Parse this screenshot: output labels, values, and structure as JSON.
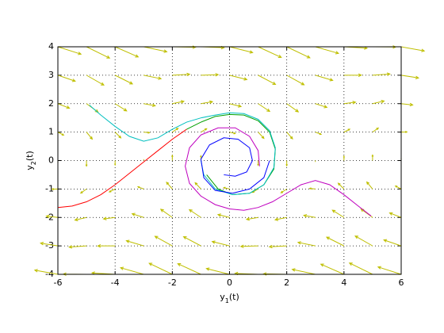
{
  "chart_data": {
    "type": "quiver",
    "xlabel": "y1(t)",
    "ylabel": "y2(t)",
    "xlim": [
      -6,
      6
    ],
    "ylim": [
      -4,
      4
    ],
    "xticks": [
      -6,
      -4,
      -2,
      0,
      2,
      4,
      6
    ],
    "yticks": [
      -4,
      -3,
      -2,
      -1,
      0,
      1,
      2,
      3,
      4
    ],
    "grid": true,
    "quiver": {
      "color": "#bfbf00",
      "x": [
        -6,
        -5,
        -4,
        -3,
        -2,
        -1,
        0,
        1,
        2,
        3,
        4,
        5,
        6
      ],
      "rows": [
        {
          "y": 4,
          "u": [
            4,
            4,
            4,
            4,
            4,
            4,
            4,
            4,
            4,
            4,
            4,
            4,
            4
          ],
          "v": [
            -1.28,
            -1.96,
            -1.76,
            -0.86,
            -0.09,
            -0.16,
            -1,
            -1.84,
            -1.91,
            -1.14,
            -0.24,
            -0.04,
            -0.72
          ]
        },
        {
          "y": 3,
          "u": [
            3,
            3,
            3,
            3,
            3,
            3,
            3,
            3,
            3,
            3,
            3,
            3,
            3
          ],
          "v": [
            -1.03,
            -1.71,
            -1.51,
            -0.61,
            0.16,
            0.09,
            -0.75,
            -1.59,
            -1.66,
            -0.89,
            0.01,
            0.21,
            -0.47
          ]
        },
        {
          "y": 2,
          "u": [
            2,
            2,
            2,
            2,
            2,
            2,
            2,
            2,
            2,
            2,
            2,
            2,
            2
          ],
          "v": [
            -0.78,
            -1.46,
            -1.26,
            -0.36,
            0.41,
            0.34,
            -0.5,
            -1.34,
            -1.41,
            -0.64,
            0.26,
            0.46,
            -0.22
          ]
        },
        {
          "y": 1,
          "u": [
            1,
            1,
            1,
            1,
            1,
            1,
            1,
            1,
            1,
            1,
            1,
            1,
            1
          ],
          "v": [
            -0.53,
            -1.21,
            -1.01,
            -0.11,
            0.66,
            0.59,
            -0.25,
            -1.09,
            -1.16,
            -0.39,
            0.51,
            0.71,
            0.03
          ]
        },
        {
          "y": 0,
          "u": [
            0,
            0,
            0,
            0,
            0,
            0,
            0,
            0,
            0,
            0,
            0,
            0,
            0
          ],
          "v": [
            -0.28,
            -0.96,
            -0.76,
            0.14,
            0.91,
            0.84,
            0,
            -0.84,
            -0.91,
            -0.14,
            0.76,
            0.96,
            0.28
          ]
        },
        {
          "y": -1,
          "u": [
            -1,
            -1,
            -1,
            -1,
            -1,
            -1,
            -1,
            -1,
            -1,
            -1,
            -1,
            -1,
            -1
          ],
          "v": [
            -0.03,
            -0.71,
            -0.51,
            0.39,
            1.16,
            1.09,
            0.25,
            -0.59,
            -0.66,
            0.11,
            1.01,
            1.21,
            0.53
          ]
        },
        {
          "y": -2,
          "u": [
            -2,
            -2,
            -2,
            -2,
            -2,
            -2,
            -2,
            -2,
            -2,
            -2,
            -2,
            -2,
            -2
          ],
          "v": [
            0.22,
            -0.46,
            -0.26,
            0.64,
            1.41,
            1.34,
            0.5,
            -0.34,
            -0.41,
            0.36,
            1.26,
            1.46,
            0.78
          ]
        },
        {
          "y": -3,
          "u": [
            -3,
            -3,
            -3,
            -3,
            -3,
            -3,
            -3,
            -3,
            -3,
            -3,
            -3,
            -3,
            -3
          ],
          "v": [
            0.47,
            -0.21,
            -0.01,
            0.89,
            1.66,
            1.59,
            0.75,
            -0.09,
            -0.16,
            0.61,
            1.51,
            1.71,
            1.03
          ]
        },
        {
          "y": -4,
          "u": [
            -4,
            -4,
            -4,
            -4,
            -4,
            -4,
            -4,
            -4,
            -4,
            -4,
            -4,
            -4,
            -4
          ],
          "v": [
            0.72,
            0.04,
            0.24,
            1.14,
            1.91,
            1.84,
            1,
            0.16,
            0.09,
            0.86,
            1.76,
            1.96,
            1.28
          ]
        }
      ]
    },
    "series": [
      {
        "color": "#ff0000",
        "x": [
          -6,
          -5.5,
          -5,
          -4.5,
          -4,
          -3.5,
          -3,
          -2.5,
          -2,
          -1.5
        ],
        "values": [
          -1.65,
          -1.6,
          -1.45,
          -1.2,
          -0.85,
          -0.45,
          -0.05,
          0.35,
          0.75,
          1.1
        ]
      },
      {
        "color": "#00a000",
        "x": [
          -1.5,
          -1,
          -0.5,
          0,
          0.5,
          1,
          1.4,
          1.6,
          1.55,
          1.2,
          0.7,
          0.1,
          -0.4,
          -0.8
        ],
        "values": [
          1.1,
          1.35,
          1.55,
          1.62,
          1.6,
          1.4,
          1.0,
          0.4,
          -0.3,
          -0.85,
          -1.15,
          -1.2,
          -1.0,
          -0.5
        ]
      },
      {
        "color": "#00bfbf",
        "x": [
          -4.9,
          -4.5,
          -4,
          -3.5,
          -3,
          -2.5,
          -2,
          -1.5,
          -1,
          -0.5,
          0,
          0.5,
          1,
          1.4,
          1.6,
          1.55,
          1.2,
          0.7,
          0.1,
          -0.5,
          -0.9,
          -1
        ],
        "values": [
          1.95,
          1.6,
          1.2,
          0.85,
          0.68,
          0.8,
          1.1,
          1.35,
          1.5,
          1.6,
          1.68,
          1.65,
          1.45,
          1.05,
          0.45,
          -0.25,
          -0.85,
          -1.15,
          -1.2,
          -1.0,
          -0.5,
          0
        ]
      },
      {
        "color": "#bf00bf",
        "x": [
          4.95,
          4.5,
          4,
          3.5,
          3,
          2.5,
          2,
          1.5,
          1,
          0.5,
          0,
          -0.5,
          -1,
          -1.4,
          -1.55,
          -1.4,
          -1,
          -0.4,
          0.2,
          0.7,
          1,
          1.05
        ],
        "values": [
          -1.95,
          -1.6,
          -1.2,
          -0.85,
          -0.7,
          -0.85,
          -1.15,
          -1.45,
          -1.65,
          -1.75,
          -1.7,
          -1.55,
          -1.25,
          -0.8,
          -0.2,
          0.45,
          0.9,
          1.15,
          1.15,
          0.85,
          0.35,
          -0.2
        ]
      },
      {
        "color": "#0000ff",
        "x": [
          -0.2,
          0.2,
          0.6,
          0.8,
          0.7,
          0.3,
          -0.2,
          -0.7,
          -1,
          -0.9,
          -0.5,
          0.1,
          0.7,
          1.2,
          1.4
        ],
        "values": [
          -0.5,
          -0.55,
          -0.4,
          0,
          0.45,
          0.75,
          0.8,
          0.55,
          0.05,
          -0.6,
          -1.05,
          -1.15,
          -1.0,
          -0.6,
          0
        ]
      }
    ]
  }
}
